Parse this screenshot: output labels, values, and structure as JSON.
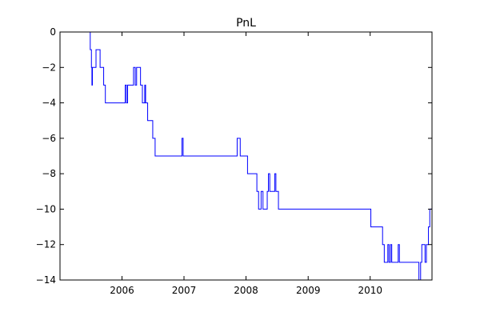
{
  "chart_data": {
    "type": "line",
    "title": "PnL",
    "xlabel": "",
    "ylabel": "",
    "xlim": [
      "2005-01-01",
      "2010-12-31"
    ],
    "ylim": [
      -14,
      0
    ],
    "x_ticks": [
      "2006",
      "2007",
      "2008",
      "2009",
      "2010"
    ],
    "y_ticks": [
      0,
      -2,
      -4,
      -6,
      -8,
      -10,
      -12,
      -14
    ],
    "grid": false,
    "line_color": "#0000ff",
    "series": [
      {
        "step": true,
        "points": [
          [
            "2005-06-20",
            0
          ],
          [
            "2005-06-28",
            -1
          ],
          [
            "2005-07-05",
            -2
          ],
          [
            "2005-07-08",
            -3
          ],
          [
            "2005-07-11",
            -2
          ],
          [
            "2005-08-01",
            -1
          ],
          [
            "2005-08-25",
            -2
          ],
          [
            "2005-09-15",
            -3
          ],
          [
            "2005-09-25",
            -4
          ],
          [
            "2006-01-20",
            -3
          ],
          [
            "2006-01-27",
            -4
          ],
          [
            "2006-02-03",
            -3
          ],
          [
            "2006-03-10",
            -2
          ],
          [
            "2006-03-20",
            -3
          ],
          [
            "2006-03-28",
            -2
          ],
          [
            "2006-04-20",
            -3
          ],
          [
            "2006-05-01",
            -4
          ],
          [
            "2006-05-15",
            -3
          ],
          [
            "2006-05-20",
            -4
          ],
          [
            "2006-06-01",
            -5
          ],
          [
            "2006-07-01",
            -6
          ],
          [
            "2006-07-15",
            -7
          ],
          [
            "2006-12-20",
            -6
          ],
          [
            "2006-12-27",
            -7
          ],
          [
            "2007-11-10",
            -6
          ],
          [
            "2007-11-28",
            -7
          ],
          [
            "2008-01-10",
            -8
          ],
          [
            "2008-03-05",
            -9
          ],
          [
            "2008-03-15",
            -10
          ],
          [
            "2008-03-30",
            -9
          ],
          [
            "2008-04-10",
            -10
          ],
          [
            "2008-05-05",
            -9
          ],
          [
            "2008-05-12",
            -8
          ],
          [
            "2008-05-20",
            -9
          ],
          [
            "2008-06-18",
            -8
          ],
          [
            "2008-06-25",
            -9
          ],
          [
            "2008-07-10",
            -10
          ],
          [
            "2010-01-05",
            -11
          ],
          [
            "2010-03-15",
            -12
          ],
          [
            "2010-03-25",
            -13
          ],
          [
            "2010-04-15",
            -12
          ],
          [
            "2010-04-22",
            -13
          ],
          [
            "2010-05-01",
            -12
          ],
          [
            "2010-05-08",
            -13
          ],
          [
            "2010-06-15",
            -12
          ],
          [
            "2010-06-22",
            -13
          ],
          [
            "2010-10-15",
            -14
          ],
          [
            "2010-10-25",
            -13
          ],
          [
            "2010-11-01",
            -12
          ],
          [
            "2010-11-20",
            -13
          ],
          [
            "2010-11-28",
            -12
          ],
          [
            "2010-12-10",
            -11
          ],
          [
            "2010-12-18",
            -10
          ],
          [
            "2010-12-31",
            -10
          ]
        ]
      }
    ]
  }
}
